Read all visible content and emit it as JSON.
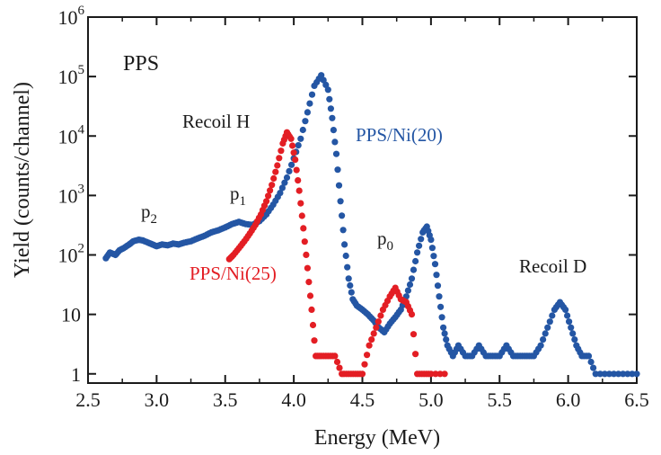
{
  "chart_data": {
    "type": "scatter",
    "xlabel": "Energy (MeV)",
    "ylabel": "Yield (counts/channel)",
    "xlim": [
      2.5,
      6.5
    ],
    "ylim": [
      0.7,
      1000000
    ],
    "yscale": "log",
    "grid": false,
    "x_ticks": [
      "2.5",
      "3.0",
      "3.5",
      "4.0",
      "4.5",
      "5.0",
      "5.5",
      "6.0",
      "6.5"
    ],
    "y_ticks": [
      {
        "value": 1,
        "base": "1",
        "exp": ""
      },
      {
        "value": 10,
        "base": "10",
        "exp": ""
      },
      {
        "value": 100,
        "base": "10",
        "exp": "2"
      },
      {
        "value": 1000,
        "base": "10",
        "exp": "3"
      },
      {
        "value": 10000,
        "base": "10",
        "exp": "4"
      },
      {
        "value": 100000,
        "base": "10",
        "exp": "5"
      },
      {
        "value": 1000000,
        "base": "10",
        "exp": "6"
      }
    ],
    "annotations": {
      "panel": "PPS",
      "recoil_h": "Recoil H",
      "recoil_d": "Recoil D",
      "p2_base": "p",
      "p2_sub": "2",
      "p1_base": "p",
      "p1_sub": "1",
      "p0_base": "p",
      "p0_sub": "0"
    },
    "series": [
      {
        "name": "PPS/Ni(20)",
        "color": "#2456a4",
        "points": [
          [
            2.63,
            88
          ],
          [
            2.66,
            110
          ],
          [
            2.7,
            100
          ],
          [
            2.73,
            120
          ],
          [
            2.76,
            130
          ],
          [
            2.8,
            150
          ],
          [
            2.83,
            170
          ],
          [
            2.87,
            180
          ],
          [
            2.9,
            175
          ],
          [
            2.94,
            160
          ],
          [
            2.97,
            150
          ],
          [
            3.0,
            140
          ],
          [
            3.04,
            150
          ],
          [
            3.08,
            145
          ],
          [
            3.12,
            155
          ],
          [
            3.16,
            150
          ],
          [
            3.2,
            160
          ],
          [
            3.25,
            170
          ],
          [
            3.3,
            190
          ],
          [
            3.35,
            210
          ],
          [
            3.4,
            240
          ],
          [
            3.45,
            260
          ],
          [
            3.5,
            290
          ],
          [
            3.55,
            330
          ],
          [
            3.6,
            360
          ],
          [
            3.65,
            330
          ],
          [
            3.7,
            320
          ],
          [
            3.75,
            370
          ],
          [
            3.8,
            480
          ],
          [
            3.85,
            700
          ],
          [
            3.9,
            1100
          ],
          [
            3.95,
            2000
          ],
          [
            4.0,
            4200
          ],
          [
            4.05,
            9000
          ],
          [
            4.1,
            25000
          ],
          [
            4.15,
            70000
          ],
          [
            4.2,
            105000
          ],
          [
            4.25,
            60000
          ],
          [
            4.28,
            20000
          ],
          [
            4.31,
            5000
          ],
          [
            4.34,
            800
          ],
          [
            4.37,
            150
          ],
          [
            4.4,
            40
          ],
          [
            4.43,
            18
          ],
          [
            4.46,
            14
          ],
          [
            4.5,
            12
          ],
          [
            4.54,
            10
          ],
          [
            4.58,
            8
          ],
          [
            4.62,
            6
          ],
          [
            4.66,
            5
          ],
          [
            4.7,
            7
          ],
          [
            4.74,
            9
          ],
          [
            4.78,
            12
          ],
          [
            4.82,
            20
          ],
          [
            4.86,
            40
          ],
          [
            4.9,
            110
          ],
          [
            4.94,
            240
          ],
          [
            4.97,
            300
          ],
          [
            5.0,
            180
          ],
          [
            5.03,
            70
          ],
          [
            5.06,
            20
          ],
          [
            5.09,
            6
          ],
          [
            5.12,
            3
          ],
          [
            5.16,
            2
          ],
          [
            5.2,
            3
          ],
          [
            5.25,
            2
          ],
          [
            5.3,
            2
          ],
          [
            5.35,
            3
          ],
          [
            5.4,
            2
          ],
          [
            5.45,
            2
          ],
          [
            5.5,
            2
          ],
          [
            5.55,
            3
          ],
          [
            5.6,
            2
          ],
          [
            5.65,
            2
          ],
          [
            5.7,
            2
          ],
          [
            5.75,
            2
          ],
          [
            5.8,
            3
          ],
          [
            5.85,
            6
          ],
          [
            5.9,
            12
          ],
          [
            5.94,
            16
          ],
          [
            5.98,
            12
          ],
          [
            6.02,
            6
          ],
          [
            6.06,
            3
          ],
          [
            6.1,
            2
          ],
          [
            6.15,
            2
          ],
          [
            6.2,
            1
          ],
          [
            6.3,
            1
          ],
          [
            6.4,
            1
          ],
          [
            6.5,
            1
          ]
        ]
      },
      {
        "name": "PPS/Ni(25)",
        "color": "#e31e24",
        "points": [
          [
            3.53,
            85
          ],
          [
            3.56,
            100
          ],
          [
            3.6,
            130
          ],
          [
            3.64,
            170
          ],
          [
            3.68,
            230
          ],
          [
            3.72,
            320
          ],
          [
            3.76,
            480
          ],
          [
            3.8,
            800
          ],
          [
            3.84,
            1500
          ],
          [
            3.88,
            3200
          ],
          [
            3.92,
            7500
          ],
          [
            3.95,
            11500
          ],
          [
            3.98,
            9000
          ],
          [
            4.01,
            4000
          ],
          [
            4.04,
            1200
          ],
          [
            4.07,
            280
          ],
          [
            4.1,
            60
          ],
          [
            4.13,
            12
          ],
          [
            4.16,
            2
          ],
          [
            4.2,
            2
          ],
          [
            4.25,
            2
          ],
          [
            4.3,
            2
          ],
          [
            4.35,
            1
          ],
          [
            4.4,
            1
          ],
          [
            4.45,
            1
          ],
          [
            4.5,
            1
          ],
          [
            4.55,
            3
          ],
          [
            4.6,
            6
          ],
          [
            4.65,
            12
          ],
          [
            4.7,
            20
          ],
          [
            4.74,
            28
          ],
          [
            4.78,
            18
          ],
          [
            4.82,
            16
          ],
          [
            4.86,
            10
          ],
          [
            4.9,
            1
          ],
          [
            4.95,
            1
          ],
          [
            5.0,
            1
          ],
          [
            5.1,
            1
          ]
        ]
      }
    ]
  }
}
